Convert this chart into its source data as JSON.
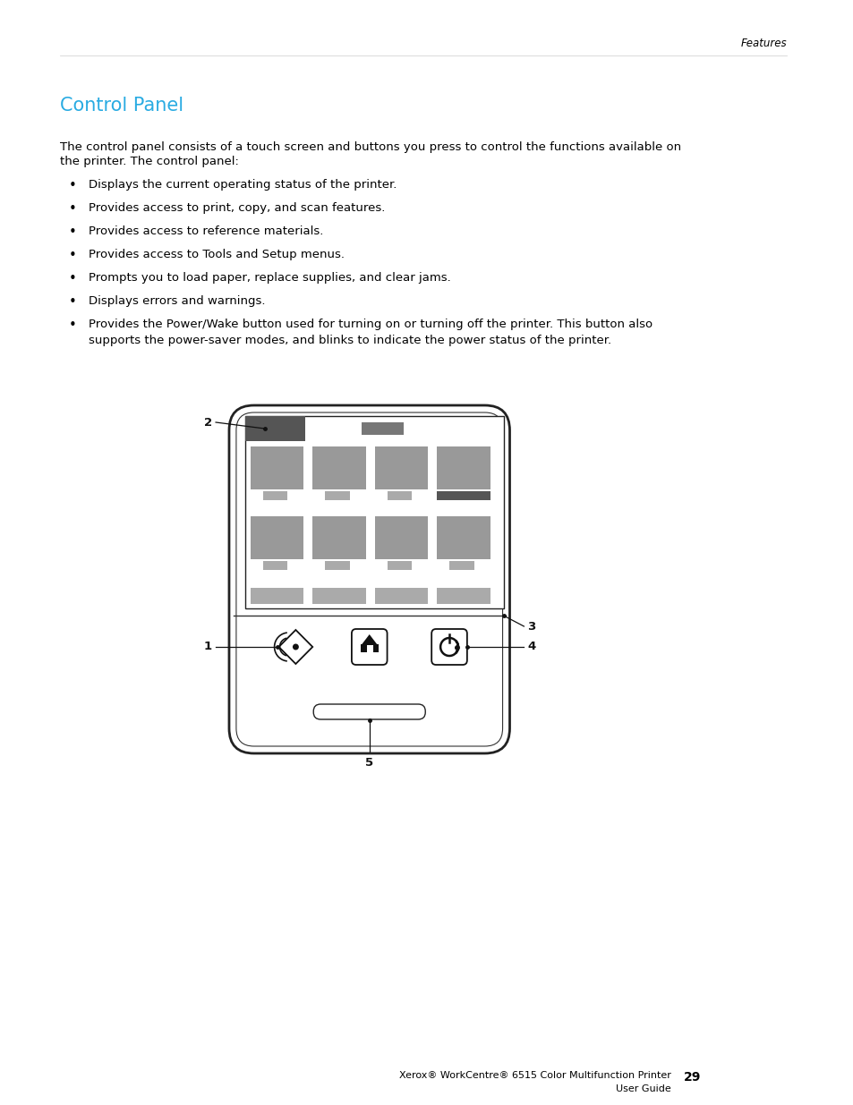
{
  "page_header": "Features",
  "title": "Control Panel",
  "title_color": "#29ABE2",
  "body_text_line1": "The control panel consists of a touch screen and buttons you press to control the functions available on",
  "body_text_line2": "the printer. The control panel:",
  "bullet_points": [
    "Displays the current operating status of the printer.",
    "Provides access to print, copy, and scan features.",
    "Provides access to reference materials.",
    "Provides access to Tools and Setup menus.",
    "Prompts you to load paper, replace supplies, and clear jams.",
    "Displays errors and warnings.",
    [
      "Provides the Power/Wake button used for turning on or turning off the printer. This button also",
      "supports the power-saver modes, and blinks to indicate the power status of the printer."
    ]
  ],
  "footer_text_left": "Xerox® WorkCentre® 6515 Color Multifunction Printer",
  "footer_text_left2": "User Guide",
  "footer_page": "29",
  "text_color": "#000000",
  "bg_color": "#ffffff",
  "font_size_body": 9.5,
  "font_size_title": 15,
  "font_size_header": 8.5,
  "font_size_footer": 8,
  "font_size_label": 9.5,
  "icon_gray": "#999999",
  "label_gray": "#aaaaaa",
  "dark_gray": "#555555",
  "mid_gray": "#777777"
}
